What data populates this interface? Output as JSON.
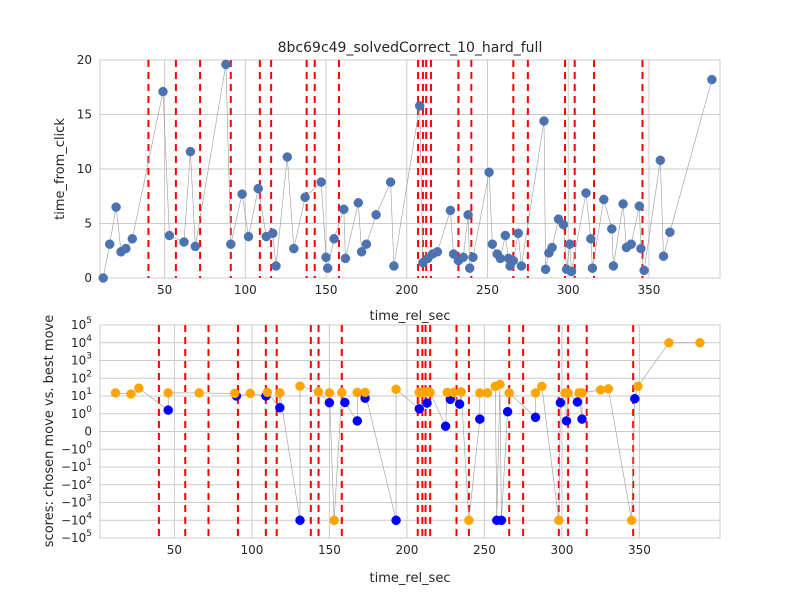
{
  "chart_data": [
    {
      "type": "scatter",
      "title": "8bc69c49_solvedCorrect_10_hard_full",
      "xlabel": "time_rel_sec",
      "ylabel": "time_from_click",
      "xlim": [
        10,
        394
      ],
      "ylim": [
        0,
        20
      ],
      "x_ticks": [
        50,
        100,
        150,
        200,
        250,
        300,
        350
      ],
      "y_ticks": [
        0,
        5,
        10,
        15,
        20
      ],
      "grid": true,
      "series": [
        {
          "color": "#4c72b0",
          "line": true,
          "points": [
            [
              12,
              0
            ],
            [
              16,
              3.1
            ],
            [
              20,
              6.5
            ],
            [
              23,
              2.4
            ],
            [
              26,
              2.7
            ],
            [
              30,
              3.6
            ],
            [
              49,
              17.1
            ],
            [
              53,
              3.9
            ],
            [
              62,
              3.3
            ],
            [
              66,
              11.6
            ],
            [
              69,
              2.9
            ],
            [
              88,
              19.6
            ],
            [
              91,
              3.1
            ],
            [
              98,
              7.7
            ],
            [
              102,
              3.8
            ],
            [
              108,
              8.2
            ],
            [
              113,
              3.8
            ],
            [
              117,
              4.1
            ],
            [
              119,
              1.1
            ],
            [
              126,
              11.1
            ],
            [
              130,
              2.7
            ],
            [
              137,
              7.4
            ],
            [
              147,
              8.8
            ],
            [
              150,
              1.9
            ],
            [
              151,
              0.9
            ],
            [
              155,
              3.6
            ],
            [
              161,
              6.3
            ],
            [
              162,
              1.8
            ],
            [
              170,
              6.9
            ],
            [
              172,
              2.4
            ],
            [
              175,
              3.1
            ],
            [
              181,
              5.8
            ],
            [
              190,
              8.8
            ],
            [
              192,
              1.1
            ],
            [
              208,
              15.8
            ],
            [
              210,
              1.4
            ],
            [
              213,
              1.8
            ],
            [
              216,
              2.2
            ],
            [
              219,
              2.4
            ],
            [
              227,
              6.2
            ],
            [
              229,
              2.2
            ],
            [
              232,
              1.6
            ],
            [
              235,
              1.9
            ],
            [
              238,
              5.8
            ],
            [
              239,
              0.9
            ],
            [
              241,
              1.9
            ],
            [
              251,
              9.7
            ],
            [
              253,
              3.1
            ],
            [
              256,
              2.2
            ],
            [
              258,
              1.8
            ],
            [
              261,
              3.9
            ],
            [
              263,
              1.8
            ],
            [
              264,
              1.1
            ],
            [
              266,
              1.6
            ],
            [
              269,
              4.1
            ],
            [
              271,
              1.1
            ],
            [
              285,
              14.4
            ],
            [
              286,
              0.8
            ],
            [
              288,
              2.3
            ],
            [
              290,
              2.8
            ],
            [
              294,
              5.4
            ],
            [
              297,
              4.9
            ],
            [
              299,
              0.8
            ],
            [
              301,
              3.1
            ],
            [
              302,
              0.6
            ],
            [
              311,
              7.8
            ],
            [
              314,
              3.6
            ],
            [
              315,
              0.9
            ],
            [
              322,
              7.2
            ],
            [
              327,
              4.5
            ],
            [
              328,
              1.1
            ],
            [
              334,
              6.8
            ],
            [
              336,
              2.8
            ],
            [
              339,
              3.1
            ],
            [
              344,
              6.6
            ],
            [
              345,
              2.7
            ],
            [
              347,
              0.7
            ],
            [
              357,
              10.8
            ],
            [
              359,
              2.0
            ],
            [
              363,
              4.2
            ],
            [
              389,
              18.2
            ]
          ]
        }
      ],
      "vlines": {
        "color": "#ff0000",
        "style": "dashed",
        "x": [
          40,
          57,
          72,
          91,
          109,
          116,
          138,
          143,
          158,
          207,
          210,
          212,
          215,
          232,
          240,
          266,
          275,
          298,
          304,
          316,
          346
        ]
      }
    },
    {
      "type": "scatter",
      "title": "",
      "xlabel": "time_rel_sec",
      "ylabel": "scores: chosen move vs. best move",
      "xlim": [
        2,
        402
      ],
      "ylim": [
        -100000,
        100000
      ],
      "yscale": "symlog",
      "x_ticks": [
        50,
        100,
        150,
        200,
        250,
        300,
        350
      ],
      "y_ticks": [
        {
          "value": 100000,
          "base": "10",
          "exp": "5"
        },
        {
          "value": 10000,
          "base": "10",
          "exp": "4"
        },
        {
          "value": 1000,
          "base": "10",
          "exp": "3"
        },
        {
          "value": 100,
          "base": "10",
          "exp": "2"
        },
        {
          "value": 10,
          "base": "10",
          "exp": "1"
        },
        {
          "value": 1,
          "base": "10",
          "exp": "0"
        },
        {
          "value": 0,
          "base": "0",
          "exp": ""
        },
        {
          "value": -1,
          "base": "−10",
          "exp": "0"
        },
        {
          "value": -10,
          "base": "−10",
          "exp": "1"
        },
        {
          "value": -100,
          "base": "−10",
          "exp": "2"
        },
        {
          "value": -1000,
          "base": "−10",
          "exp": "3"
        },
        {
          "value": -10000,
          "base": "−10",
          "exp": "4"
        },
        {
          "value": -100000,
          "base": "−10",
          "exp": "5"
        }
      ],
      "grid": true,
      "connector_color": "#999999",
      "series": [
        {
          "color": "#0000ff",
          "points": [
            [
              46,
              1.6
            ],
            [
              90,
              10
            ],
            [
              109,
              10
            ],
            [
              118,
              2.2
            ],
            [
              131,
              -10000
            ],
            [
              150,
              4.2
            ],
            [
              160,
              4.3
            ],
            [
              168,
              0.6
            ],
            [
              173,
              7.5
            ],
            [
              193,
              -10000
            ],
            [
              208,
              1.9
            ],
            [
              213,
              4.0
            ],
            [
              225,
              0.3
            ],
            [
              228,
              6.5
            ],
            [
              234,
              3.5
            ],
            [
              247,
              0.7
            ],
            [
              258,
              -10000
            ],
            [
              261,
              -10000
            ],
            [
              265,
              1.3
            ],
            [
              283,
              0.8
            ],
            [
              299,
              4.2
            ],
            [
              303,
              0.6
            ],
            [
              310,
              4.6
            ],
            [
              313,
              0.7
            ],
            [
              347,
              7.0
            ]
          ]
        },
        {
          "color": "#ffa500",
          "points": [
            [
              12,
              15
            ],
            [
              22,
              13
            ],
            [
              27,
              28
            ],
            [
              46,
              15
            ],
            [
              66,
              15
            ],
            [
              89,
              14
            ],
            [
              99,
              14
            ],
            [
              110,
              16
            ],
            [
              118,
              15
            ],
            [
              131,
              36
            ],
            [
              143,
              17
            ],
            [
              150,
              15
            ],
            [
              153,
              -10000
            ],
            [
              158,
              16
            ],
            [
              168,
              16
            ],
            [
              173,
              16
            ],
            [
              193,
              24
            ],
            [
              208,
              16
            ],
            [
              210,
              16
            ],
            [
              213,
              17
            ],
            [
              215,
              16
            ],
            [
              226,
              16
            ],
            [
              230,
              16
            ],
            [
              235,
              17
            ],
            [
              240,
              -10000
            ],
            [
              247,
              15
            ],
            [
              252,
              15
            ],
            [
              257,
              35
            ],
            [
              260,
              45
            ],
            [
              266,
              15
            ],
            [
              283,
              15
            ],
            [
              287,
              35
            ],
            [
              298,
              -10000
            ],
            [
              302,
              15
            ],
            [
              304,
              15
            ],
            [
              311,
              15
            ],
            [
              313,
              15
            ],
            [
              325,
              22
            ],
            [
              330,
              25
            ],
            [
              345,
              -10000
            ],
            [
              349,
              35
            ],
            [
              369,
              10000
            ],
            [
              389,
              10000
            ]
          ]
        }
      ],
      "vlines": {
        "color": "#ff0000",
        "style": "dashed",
        "x": [
          40,
          57,
          72,
          91,
          109,
          116,
          138,
          143,
          158,
          207,
          210,
          212,
          215,
          232,
          240,
          266,
          275,
          298,
          304,
          316,
          346
        ]
      }
    }
  ]
}
